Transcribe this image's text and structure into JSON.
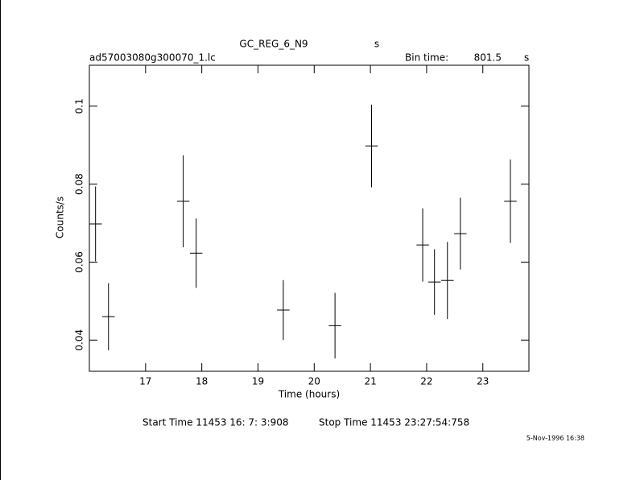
{
  "chart_data": {
    "type": "errorbar",
    "title": "GC_REG_6_N9",
    "title_unit": "s",
    "file_name": "ad57003080g300070_1.lc",
    "bin_time_label": "Bin time:",
    "bin_time": 801.5,
    "bin_time_unit": "s",
    "xlabel": "Time (hours)",
    "ylabel": "Counts/s",
    "start_time": "Start Time 11453 16: 7: 3:908",
    "stop_time": "Stop Time 11453 23:27:54:758",
    "date_stamp": "5-Nov-1996 16:38",
    "x": [
      16.11,
      16.34,
      17.67,
      17.9,
      19.45,
      20.37,
      21.02,
      21.93,
      22.14,
      22.37,
      22.6,
      23.49
    ],
    "xerr": 0.111,
    "values": [
      0.0698,
      0.046,
      0.0756,
      0.0623,
      0.0477,
      0.0437,
      0.0898,
      0.0644,
      0.0549,
      0.0553,
      0.0673,
      0.0756
    ],
    "errors": [
      0.0096,
      0.0086,
      0.0118,
      0.0089,
      0.0077,
      0.0084,
      0.0106,
      0.0094,
      0.0084,
      0.0099,
      0.0092,
      0.0107
    ],
    "color": "#000000",
    "xlim": [
      16.0,
      23.82
    ],
    "ylim": [
      0.032,
      0.1105
    ],
    "xticks": [
      17,
      18,
      19,
      20,
      21,
      22,
      23
    ],
    "yticks": [
      0.04,
      0.06,
      0.08,
      0.1
    ]
  }
}
